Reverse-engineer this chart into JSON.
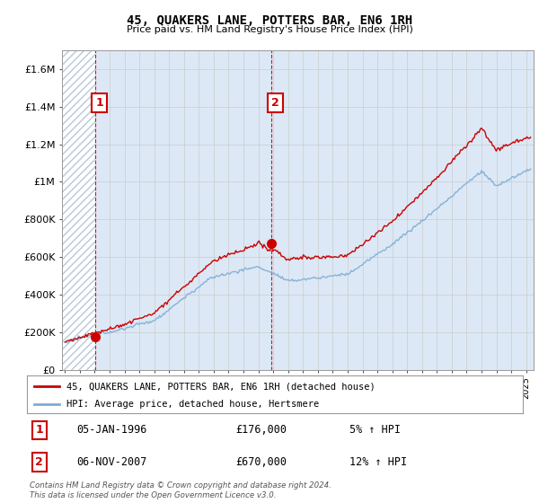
{
  "title": "45, QUAKERS LANE, POTTERS BAR, EN6 1RH",
  "subtitle": "Price paid vs. HM Land Registry's House Price Index (HPI)",
  "ylabel_ticks": [
    "£0",
    "£200K",
    "£400K",
    "£600K",
    "£800K",
    "£1M",
    "£1.2M",
    "£1.4M",
    "£1.6M"
  ],
  "ytick_values": [
    0,
    200000,
    400000,
    600000,
    800000,
    1000000,
    1200000,
    1400000,
    1600000
  ],
  "ylim": [
    0,
    1700000
  ],
  "xlim_start": 1993.8,
  "xlim_end": 2025.5,
  "sale1_x": 1996.02,
  "sale1_y": 176000,
  "sale1_label": "1",
  "sale2_x": 2007.84,
  "sale2_y": 670000,
  "sale2_label": "2",
  "sale1_date": "05-JAN-1996",
  "sale1_price": "£176,000",
  "sale1_pct": "5% ↑ HPI",
  "sale2_date": "06-NOV-2007",
  "sale2_price": "£670,000",
  "sale2_pct": "12% ↑ HPI",
  "legend_line1": "45, QUAKERS LANE, POTTERS BAR, EN6 1RH (detached house)",
  "legend_line2": "HPI: Average price, detached house, Hertsmere",
  "footer": "Contains HM Land Registry data © Crown copyright and database right 2024.\nThis data is licensed under the Open Government Licence v3.0.",
  "line_color_red": "#cc0000",
  "line_color_blue": "#7dadd4",
  "grid_color": "#cccccc",
  "bg_color": "#dce8f5",
  "hatch_color": "#b8c8d8",
  "annotation_box_color": "#cc0000",
  "dashed_vline_color": "#cc0000"
}
